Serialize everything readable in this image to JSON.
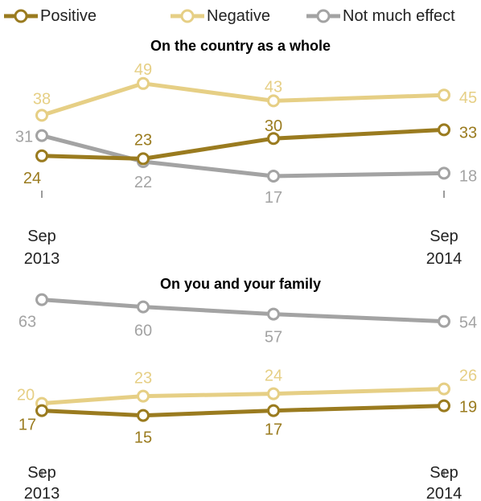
{
  "legend": [
    {
      "label": "Positive",
      "color": "#9a7b1f"
    },
    {
      "label": "Negative",
      "color": "#e6cf85"
    },
    {
      "label": "Not much effect",
      "color": "#a3a3a3"
    }
  ],
  "chart_data": [
    {
      "type": "line",
      "title": "On the country as a whole",
      "x": [
        "Sep 2013",
        "",
        "",
        "Sep 2014"
      ],
      "tick_labels": [
        {
          "line1": "Sep",
          "line2": "2013"
        },
        {
          "line1": "Sep",
          "line2": "2014"
        }
      ],
      "ylim": [
        10,
        55
      ],
      "grid": false,
      "legend_position": "top",
      "series": [
        {
          "name": "Positive",
          "color": "#9a7b1f",
          "values": [
            24,
            23,
            30,
            33
          ]
        },
        {
          "name": "Negative",
          "color": "#e6cf85",
          "values": [
            38,
            49,
            43,
            45
          ]
        },
        {
          "name": "Not much effect",
          "color": "#a3a3a3",
          "values": [
            31,
            22,
            17,
            18
          ]
        }
      ]
    },
    {
      "type": "line",
      "title": "On you and your family",
      "x": [
        "Sep 2013",
        "",
        "",
        "Sep 2014"
      ],
      "tick_labels": [
        {
          "line1": "Sep",
          "line2": "2013"
        },
        {
          "line1": "Sep",
          "line2": "2014"
        }
      ],
      "ylim": [
        10,
        70
      ],
      "grid": false,
      "series": [
        {
          "name": "Positive",
          "color": "#9a7b1f",
          "values": [
            17,
            15,
            17,
            19
          ]
        },
        {
          "name": "Negative",
          "color": "#e6cf85",
          "values": [
            20,
            23,
            24,
            26
          ]
        },
        {
          "name": "Not much effect",
          "color": "#a3a3a3",
          "values": [
            63,
            60,
            57,
            54
          ]
        }
      ]
    }
  ]
}
